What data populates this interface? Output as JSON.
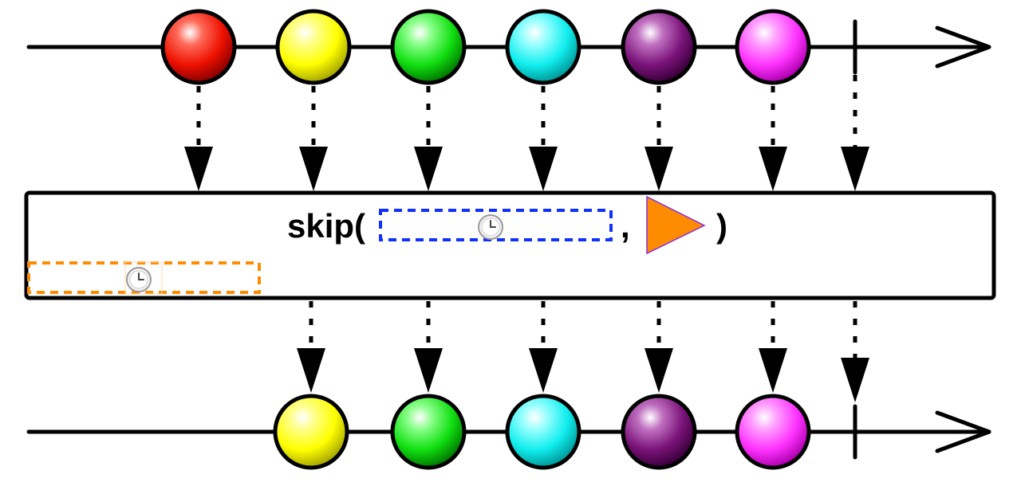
{
  "diagram": {
    "operator": {
      "name": "skip(",
      "separator": ",",
      "close": ")",
      "duration_icon": "clock-icon",
      "scheduler_icon": "triangle-play-icon"
    },
    "window_icon": "clock-icon",
    "source_events": [
      {
        "color": "red"
      },
      {
        "color": "yellow"
      },
      {
        "color": "green"
      },
      {
        "color": "cyan"
      },
      {
        "color": "purple"
      },
      {
        "color": "magenta"
      }
    ],
    "result_events": [
      {
        "color": "yellow"
      },
      {
        "color": "green"
      },
      {
        "color": "cyan"
      },
      {
        "color": "purple"
      },
      {
        "color": "magenta"
      }
    ],
    "completion": true,
    "colors": {
      "red": "#ff1a00",
      "yellow": "#ffff00",
      "green": "#22ee22",
      "cyan": "#1ff5f5",
      "purple": "#8b1a8b",
      "magenta": "#ff33ff",
      "window_dashes": "#ff8c00",
      "duration_dashes": "#1030ff",
      "scheduler_fill": "#ff8c00",
      "scheduler_stroke": "#8a2be2"
    }
  }
}
